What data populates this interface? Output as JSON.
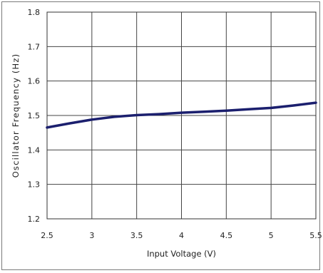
{
  "chart_data": {
    "type": "line",
    "title": "",
    "xlabel": "Input Voltage (V)",
    "ylabel": "Oscillator Frequency (Hz)",
    "xlim": [
      2.5,
      5.5
    ],
    "ylim": [
      1.2,
      1.8
    ],
    "x_ticks": [
      2.5,
      3,
      3.5,
      4,
      4.5,
      5,
      5.5
    ],
    "x_tick_labels": [
      "2.5",
      "3",
      "3.5",
      "4",
      "4.5",
      "5",
      "5.5"
    ],
    "y_ticks": [
      1.2,
      1.3,
      1.4,
      1.5,
      1.6,
      1.7,
      1.8
    ],
    "y_tick_labels": [
      "1.2",
      "1.3",
      "1.4",
      "1.5",
      "1.6",
      "1.7",
      "1.8"
    ],
    "grid": true,
    "legend": "none",
    "series": [
      {
        "color": "#1b1f6e",
        "x": [
          2.5,
          2.75,
          3.0,
          3.25,
          3.5,
          3.75,
          4.0,
          4.25,
          4.5,
          4.75,
          5.0,
          5.25,
          5.5
        ],
        "y": [
          1.465,
          1.477,
          1.488,
          1.496,
          1.501,
          1.504,
          1.508,
          1.511,
          1.514,
          1.518,
          1.522,
          1.529,
          1.537
        ]
      }
    ]
  }
}
